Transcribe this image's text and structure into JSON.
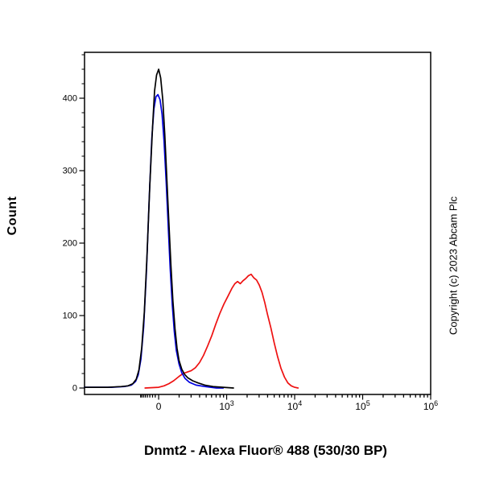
{
  "copyright": "Copyright (c) 2023 Abcam Plc",
  "chart_data": {
    "type": "line",
    "subtype": "flow-cytometry-histogram",
    "title": "",
    "xlabel": "Dnmt2 - Alexa Fluor® 488 (530/30 BP)",
    "ylabel": "Count",
    "ylim": [
      0,
      460
    ],
    "x_scale": "biexponential (logicle): u=0 at 0, u=1 at 1e3, u=2 at 1e4, u=3 at 1e5, u=4 at 1e6",
    "grid": false,
    "legend": "none",
    "y_ticks": [
      0,
      100,
      200,
      300,
      400
    ],
    "y_minor_step": 20,
    "x_ticks": [
      {
        "label": "0",
        "u": 0
      },
      {
        "label": "10",
        "sup": "3",
        "u": 1
      },
      {
        "label": "10",
        "sup": "4",
        "u": 2
      },
      {
        "label": "10",
        "sup": "5",
        "u": 3
      },
      {
        "label": "10",
        "sup": "6",
        "u": 4
      }
    ],
    "series": [
      {
        "name": "dnmt2-alexa488-red",
        "color": "#ee1111",
        "peak_count": 157,
        "peak_x_approx": "2.3e3",
        "points": [
          [
            -0.2,
            0
          ],
          [
            0,
            1
          ],
          [
            0.08,
            3
          ],
          [
            0.15,
            6
          ],
          [
            0.22,
            10
          ],
          [
            0.3,
            16
          ],
          [
            0.36,
            20
          ],
          [
            0.42,
            22
          ],
          [
            0.48,
            24
          ],
          [
            0.54,
            28
          ],
          [
            0.6,
            35
          ],
          [
            0.66,
            45
          ],
          [
            0.72,
            58
          ],
          [
            0.78,
            72
          ],
          [
            0.84,
            88
          ],
          [
            0.9,
            103
          ],
          [
            0.96,
            116
          ],
          [
            1.02,
            127
          ],
          [
            1.08,
            138
          ],
          [
            1.12,
            144
          ],
          [
            1.16,
            147
          ],
          [
            1.2,
            144
          ],
          [
            1.24,
            148
          ],
          [
            1.28,
            151
          ],
          [
            1.32,
            155
          ],
          [
            1.36,
            157
          ],
          [
            1.4,
            152
          ],
          [
            1.44,
            149
          ],
          [
            1.48,
            142
          ],
          [
            1.52,
            132
          ],
          [
            1.56,
            118
          ],
          [
            1.6,
            102
          ],
          [
            1.65,
            83
          ],
          [
            1.7,
            62
          ],
          [
            1.75,
            43
          ],
          [
            1.8,
            27
          ],
          [
            1.85,
            15
          ],
          [
            1.9,
            7
          ],
          [
            1.95,
            3
          ],
          [
            2.0,
            1
          ],
          [
            2.05,
            0
          ]
        ]
      },
      {
        "name": "control-blue",
        "color": "#0000e0",
        "peak_count": 405,
        "peak_x_approx": "0",
        "points": [
          [
            -1.09,
            1
          ],
          [
            -0.7,
            1
          ],
          [
            -0.5,
            2
          ],
          [
            -0.4,
            4
          ],
          [
            -0.34,
            9
          ],
          [
            -0.3,
            18
          ],
          [
            -0.26,
            40
          ],
          [
            -0.22,
            85
          ],
          [
            -0.18,
            160
          ],
          [
            -0.14,
            260
          ],
          [
            -0.1,
            345
          ],
          [
            -0.07,
            385
          ],
          [
            -0.04,
            402
          ],
          [
            -0.01,
            405
          ],
          [
            0.02,
            398
          ],
          [
            0.05,
            378
          ],
          [
            0.08,
            340
          ],
          [
            0.11,
            285
          ],
          [
            0.14,
            225
          ],
          [
            0.17,
            165
          ],
          [
            0.2,
            115
          ],
          [
            0.23,
            78
          ],
          [
            0.26,
            52
          ],
          [
            0.3,
            33
          ],
          [
            0.34,
            21
          ],
          [
            0.39,
            13
          ],
          [
            0.45,
            8
          ],
          [
            0.55,
            4
          ],
          [
            0.68,
            2
          ],
          [
            0.85,
            0
          ],
          [
            0.95,
            0
          ]
        ]
      },
      {
        "name": "control-black",
        "color": "#000000",
        "peak_count": 440,
        "peak_x_approx": "0",
        "points": [
          [
            -1.09,
            1
          ],
          [
            -0.75,
            1
          ],
          [
            -0.55,
            2
          ],
          [
            -0.45,
            3
          ],
          [
            -0.38,
            6
          ],
          [
            -0.33,
            12
          ],
          [
            -0.29,
            25
          ],
          [
            -0.25,
            55
          ],
          [
            -0.21,
            105
          ],
          [
            -0.17,
            185
          ],
          [
            -0.13,
            280
          ],
          [
            -0.09,
            360
          ],
          [
            -0.06,
            410
          ],
          [
            -0.03,
            432
          ],
          [
            0,
            440
          ],
          [
            0.03,
            428
          ],
          [
            0.06,
            398
          ],
          [
            0.09,
            350
          ],
          [
            0.12,
            290
          ],
          [
            0.15,
            228
          ],
          [
            0.18,
            170
          ],
          [
            0.21,
            120
          ],
          [
            0.24,
            82
          ],
          [
            0.27,
            55
          ],
          [
            0.3,
            38
          ],
          [
            0.34,
            26
          ],
          [
            0.38,
            19
          ],
          [
            0.43,
            14
          ],
          [
            0.5,
            10
          ],
          [
            0.58,
            7
          ],
          [
            0.68,
            4
          ],
          [
            0.8,
            2
          ],
          [
            0.95,
            1
          ],
          [
            1.1,
            0
          ]
        ]
      }
    ]
  }
}
